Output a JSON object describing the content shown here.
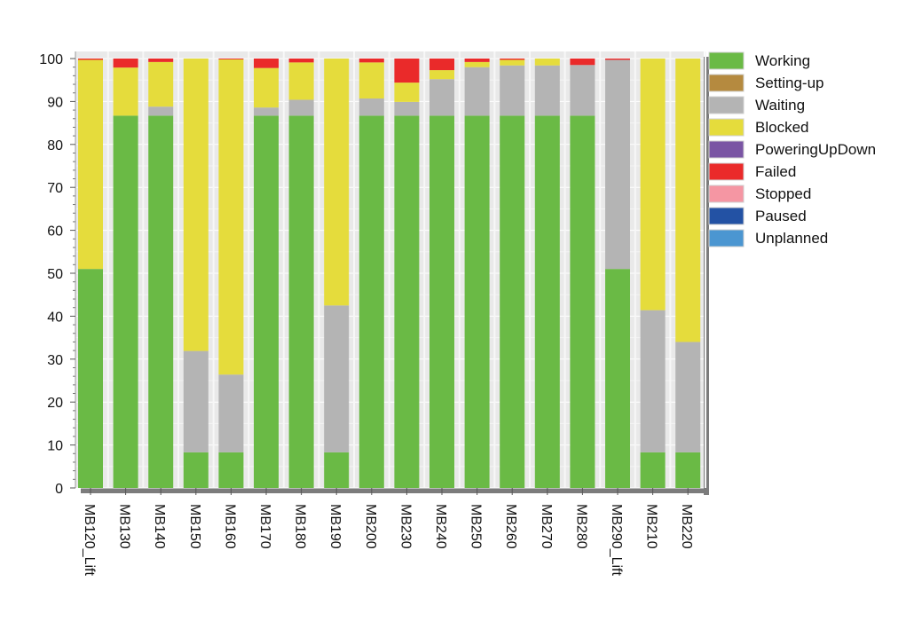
{
  "chart_data": {
    "type": "bar",
    "stacked": true,
    "ylim": [
      0,
      100
    ],
    "yticks": [
      0,
      10,
      20,
      30,
      40,
      50,
      60,
      70,
      80,
      90,
      100
    ],
    "grid": true,
    "legend_position": "right",
    "categories": [
      "MB120_Lift",
      "MB130",
      "MB140",
      "MB150",
      "MB160",
      "MB170",
      "MB180",
      "MB190",
      "MB200",
      "MB230",
      "MB240",
      "MB250",
      "MB260",
      "MB270",
      "MB280",
      "MB290_Lift",
      "MB210",
      "MB220"
    ],
    "series": [
      {
        "name": "Working",
        "color": "#6aba45",
        "values": [
          51,
          86.7,
          86.7,
          8.3,
          8.3,
          86.7,
          86.7,
          8.3,
          86.7,
          86.7,
          86.7,
          86.7,
          86.7,
          86.7,
          86.7,
          51,
          8.3,
          8.3
        ]
      },
      {
        "name": "Setting-up",
        "color": "#b58a3f",
        "values": [
          0,
          0,
          0,
          0,
          0,
          0,
          0,
          0,
          0,
          0,
          0,
          0,
          0,
          0,
          0,
          0,
          0,
          0
        ]
      },
      {
        "name": "Waiting",
        "color": "#b4b4b4",
        "values": [
          0,
          0,
          2.1,
          23.6,
          18.1,
          1.9,
          3.7,
          34.2,
          4,
          3.2,
          8.5,
          11.3,
          11.7,
          11.7,
          11.8,
          48.7,
          33.1,
          25.7
        ]
      },
      {
        "name": "Blocked",
        "color": "#e5dc3c",
        "values": [
          48.7,
          11.2,
          10.4,
          68.1,
          73.4,
          9.2,
          8.7,
          57.5,
          8.4,
          4.5,
          2.1,
          1.2,
          1.3,
          1.6,
          0,
          0,
          58.6,
          66
        ]
      },
      {
        "name": "PoweringUpDown",
        "color": "#7a55a4",
        "values": [
          0,
          0,
          0,
          0,
          0,
          0,
          0,
          0,
          0,
          0,
          0,
          0,
          0,
          0,
          0,
          0,
          0,
          0
        ]
      },
      {
        "name": "Failed",
        "color": "#ea2a2a",
        "values": [
          0.3,
          2.1,
          0.8,
          0,
          0.2,
          2.2,
          0.9,
          0,
          0.9,
          5.6,
          2.7,
          0.8,
          0.3,
          0,
          1.5,
          0.3,
          0,
          0
        ]
      },
      {
        "name": "Stopped",
        "color": "#f596a3",
        "values": [
          0,
          0,
          0,
          0,
          0,
          0,
          0,
          0,
          0,
          0,
          0,
          0,
          0,
          0,
          0,
          0,
          0,
          0
        ]
      },
      {
        "name": "Paused",
        "color": "#2352a4",
        "values": [
          0,
          0,
          0,
          0,
          0,
          0,
          0,
          0,
          0,
          0,
          0,
          0,
          0,
          0,
          0,
          0,
          0,
          0
        ]
      },
      {
        "name": "Unplanned",
        "color": "#4b96d1",
        "values": [
          0,
          0,
          0,
          0,
          0,
          0,
          0,
          0,
          0,
          0,
          0,
          0,
          0,
          0,
          0,
          0,
          0,
          0
        ]
      }
    ]
  }
}
